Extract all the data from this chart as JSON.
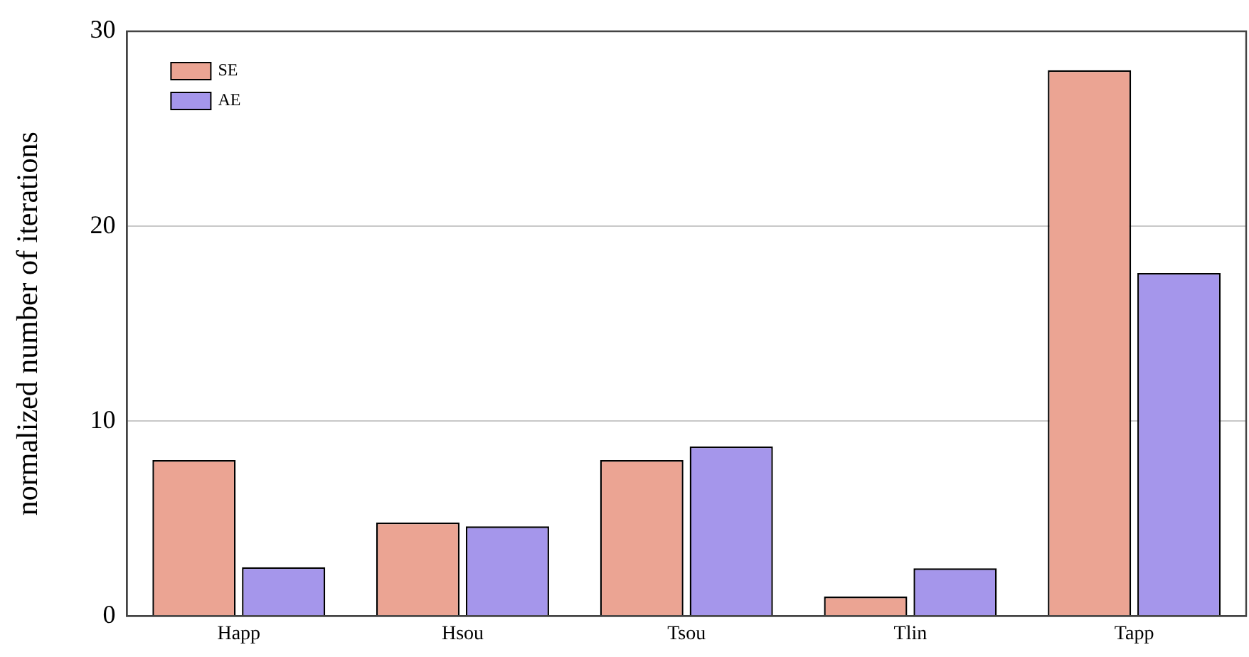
{
  "chart_data": {
    "type": "bar",
    "ylabel": "normalized number of iterations",
    "categories": [
      "Happ",
      "Hsou",
      "Tsou",
      "Tlin",
      "Tapp"
    ],
    "series": [
      {
        "name": "SE",
        "color": "#eba493",
        "values": [
          8.0,
          4.8,
          8.0,
          1.0,
          28.0
        ]
      },
      {
        "name": "AE",
        "color": "#a596eb",
        "values": [
          2.5,
          4.6,
          8.7,
          2.45,
          17.6
        ]
      }
    ],
    "ylim": [
      0,
      30
    ],
    "yticks": [
      0,
      10,
      20,
      30
    ],
    "grid": "y",
    "legend": "top left"
  }
}
